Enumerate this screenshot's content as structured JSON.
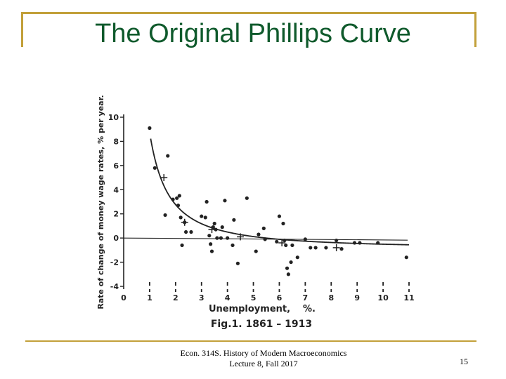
{
  "slide": {
    "title": "The Original Phillips Curve",
    "footer_line1": "Econ. 314S.  History of Modern Macroeconomics",
    "footer_line2": "Lecture 8, Fall 2017",
    "page_number": "15",
    "accent_color": "#c2a03a",
    "title_color": "#0f5a2c"
  },
  "chart_data": {
    "type": "scatter",
    "title": "",
    "caption": "Fig.1. 1861 – 1913",
    "xlabel": "Unemployment,",
    "xlabel_unit": "%.",
    "ylabel": "Rate of change of money wage rates, % per year.",
    "xlim": [
      0,
      11
    ],
    "ylim": [
      -4,
      10
    ],
    "x_ticks": [
      "0",
      "1",
      "2",
      "3",
      "4",
      "5",
      "6",
      "7",
      "8",
      "9",
      "10",
      "11"
    ],
    "y_ticks": [
      "10",
      "8",
      "6",
      "4",
      "2",
      "0",
      "-2",
      "-4"
    ],
    "grid": false,
    "series": [
      {
        "marker": "dot",
        "points": [
          [
            1.0,
            9.1
          ],
          [
            1.2,
            5.8
          ],
          [
            1.6,
            1.9
          ],
          [
            1.7,
            6.8
          ],
          [
            1.9,
            3.2
          ],
          [
            2.05,
            3.3
          ],
          [
            2.1,
            2.7
          ],
          [
            2.15,
            3.5
          ],
          [
            2.2,
            1.7
          ],
          [
            2.25,
            -0.6
          ],
          [
            2.35,
            1.3
          ],
          [
            2.4,
            0.5
          ],
          [
            2.6,
            0.5
          ],
          [
            3.0,
            1.8
          ],
          [
            3.15,
            1.7
          ],
          [
            3.2,
            3.0
          ],
          [
            3.3,
            0.2
          ],
          [
            3.35,
            -0.5
          ],
          [
            3.4,
            -1.1
          ],
          [
            3.45,
            0.9
          ],
          [
            3.5,
            1.2
          ],
          [
            3.55,
            0.7
          ],
          [
            3.6,
            0.0
          ],
          [
            3.75,
            0.0
          ],
          [
            3.8,
            0.9
          ],
          [
            3.9,
            3.1
          ],
          [
            4.0,
            0.0
          ],
          [
            4.2,
            -0.6
          ],
          [
            4.25,
            1.5
          ],
          [
            4.4,
            -2.1
          ],
          [
            4.75,
            3.3
          ],
          [
            5.1,
            -1.1
          ],
          [
            5.2,
            0.3
          ],
          [
            5.4,
            0.8
          ],
          [
            5.45,
            -0.1
          ],
          [
            5.9,
            -0.3
          ],
          [
            6.0,
            1.8
          ],
          [
            6.15,
            1.2
          ],
          [
            6.2,
            -0.2
          ],
          [
            6.25,
            -0.6
          ],
          [
            6.3,
            -2.5
          ],
          [
            6.35,
            -3.0
          ],
          [
            6.45,
            -2.0
          ],
          [
            6.5,
            -0.6
          ],
          [
            6.7,
            -1.6
          ],
          [
            7.0,
            -0.1
          ],
          [
            7.2,
            -0.8
          ],
          [
            7.4,
            -0.8
          ],
          [
            7.8,
            -0.8
          ],
          [
            8.2,
            -0.2
          ],
          [
            8.4,
            -0.9
          ],
          [
            8.9,
            -0.4
          ],
          [
            9.1,
            -0.4
          ],
          [
            9.8,
            -0.4
          ],
          [
            10.9,
            -1.6
          ]
        ]
      },
      {
        "marker": "cross",
        "points": [
          [
            1.55,
            5.0
          ],
          [
            2.35,
            1.3
          ],
          [
            3.4,
            0.7
          ],
          [
            4.5,
            0.1
          ],
          [
            6.1,
            -0.4
          ],
          [
            8.2,
            -0.8
          ]
        ]
      }
    ],
    "fitted_curve": {
      "equation_form": "y + a = b * x^c",
      "a": 0.9,
      "b": 9.638,
      "c": -1.394,
      "x_from": 1.0,
      "x_to": 11.0
    },
    "zero_line": true
  }
}
